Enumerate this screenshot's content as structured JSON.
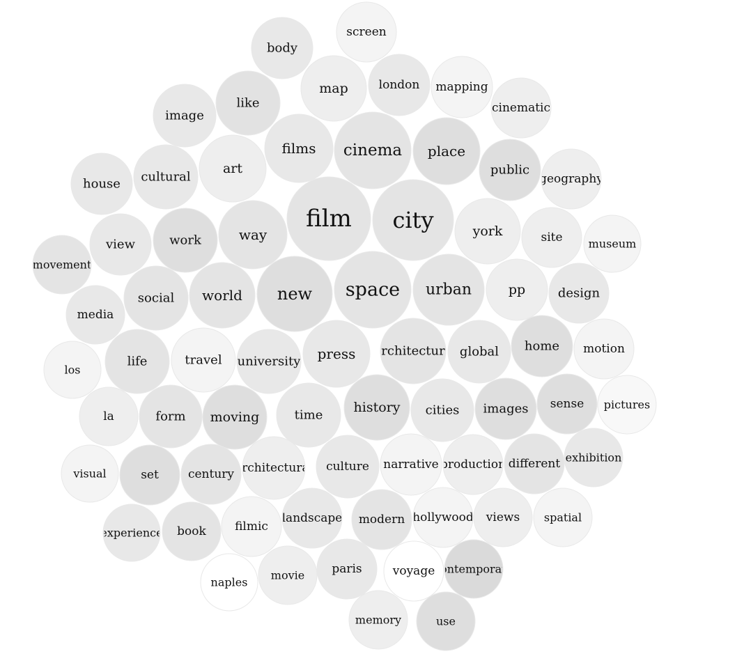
{
  "words": [
    {
      "text": "film",
      "shade": "#e4e4e4"
    },
    {
      "text": "city",
      "shade": "#e4e4e4"
    },
    {
      "text": "space",
      "shade": "#e4e4e4"
    },
    {
      "text": "new",
      "shade": "#dedede"
    },
    {
      "text": "cinema",
      "shade": "#e4e4e4"
    },
    {
      "text": "urban",
      "shade": "#e4e4e4"
    },
    {
      "text": "place",
      "shade": "#dedede"
    },
    {
      "text": "public",
      "shade": "#dedede"
    },
    {
      "text": "screen",
      "shade": "#f4f4f4"
    },
    {
      "text": "body",
      "shade": "#e8e8e8"
    },
    {
      "text": "map",
      "shade": "#eeeeee"
    },
    {
      "text": "london",
      "shade": "#e8e8e8"
    },
    {
      "text": "mapping",
      "shade": "#f4f4f4"
    },
    {
      "text": "cinematic",
      "shade": "#eeeeee"
    },
    {
      "text": "like",
      "shade": "#e2e2e2"
    },
    {
      "text": "image",
      "shade": "#e8e8e8"
    },
    {
      "text": "films",
      "shade": "#e8e8e8"
    },
    {
      "text": "art",
      "shade": "#eeeeee"
    },
    {
      "text": "cultural",
      "shade": "#e8e8e8"
    },
    {
      "text": "house",
      "shade": "#e8e8e8"
    },
    {
      "text": "geography",
      "shade": "#eeeeee"
    },
    {
      "text": "york",
      "shade": "#eeeeee"
    },
    {
      "text": "site",
      "shade": "#eeeeee"
    },
    {
      "text": "museum",
      "shade": "#f4f4f4"
    },
    {
      "text": "way",
      "shade": "#e4e4e4"
    },
    {
      "text": "work",
      "shade": "#dedede"
    },
    {
      "text": "view",
      "shade": "#e8e8e8"
    },
    {
      "text": "movement",
      "shade": "#e4e4e4"
    },
    {
      "text": "pp",
      "shade": "#eeeeee"
    },
    {
      "text": "design",
      "shade": "#e8e8e8"
    },
    {
      "text": "social",
      "shade": "#e4e4e4"
    },
    {
      "text": "world",
      "shade": "#e4e4e4"
    },
    {
      "text": "media",
      "shade": "#e8e8e8"
    },
    {
      "text": "press",
      "shade": "#e8e8e8"
    },
    {
      "text": "architecture",
      "shade": "#e4e4e4"
    },
    {
      "text": "global",
      "shade": "#e8e8e8"
    },
    {
      "text": "home",
      "shade": "#dedede"
    },
    {
      "text": "motion",
      "shade": "#f4f4f4"
    },
    {
      "text": "los",
      "shade": "#f4f4f4"
    },
    {
      "text": "life",
      "shade": "#e4e4e4"
    },
    {
      "text": "travel",
      "shade": "#f4f4f4"
    },
    {
      "text": "university",
      "shade": "#e8e8e8"
    },
    {
      "text": "history",
      "shade": "#dedede"
    },
    {
      "text": "cities",
      "shade": "#e8e8e8"
    },
    {
      "text": "images",
      "shade": "#dedede"
    },
    {
      "text": "sense",
      "shade": "#dedede"
    },
    {
      "text": "pictures",
      "shade": "#f8f8f8"
    },
    {
      "text": "la",
      "shade": "#eeeeee"
    },
    {
      "text": "form",
      "shade": "#e4e4e4"
    },
    {
      "text": "moving",
      "shade": "#dedede"
    },
    {
      "text": "time",
      "shade": "#e8e8e8"
    },
    {
      "text": "visual",
      "shade": "#f4f4f4"
    },
    {
      "text": "set",
      "shade": "#dedede"
    },
    {
      "text": "century",
      "shade": "#e4e4e4"
    },
    {
      "text": "architectural",
      "shade": "#eeeeee"
    },
    {
      "text": "culture",
      "shade": "#e8e8e8"
    },
    {
      "text": "narrative",
      "shade": "#f4f4f4"
    },
    {
      "text": "production",
      "shade": "#eeeeee"
    },
    {
      "text": "different",
      "shade": "#e4e4e4"
    },
    {
      "text": "exhibition",
      "shade": "#e8e8e8"
    },
    {
      "text": "experience",
      "shade": "#e8e8e8"
    },
    {
      "text": "book",
      "shade": "#e4e4e4"
    },
    {
      "text": "filmic",
      "shade": "#f4f4f4"
    },
    {
      "text": "landscape",
      "shade": "#e8e8e8"
    },
    {
      "text": "modern",
      "shade": "#e4e4e4"
    },
    {
      "text": "hollywood",
      "shade": "#f4f4f4"
    },
    {
      "text": "views",
      "shade": "#eeeeee"
    },
    {
      "text": "spatial",
      "shade": "#f4f4f4"
    },
    {
      "text": "naples",
      "shade": "#ffffff"
    },
    {
      "text": "movie",
      "shade": "#eeeeee"
    },
    {
      "text": "paris",
      "shade": "#e8e8e8"
    },
    {
      "text": "voyage",
      "shade": "#ffffff"
    },
    {
      "text": "contemporary",
      "shade": "#dadada"
    },
    {
      "text": "memory",
      "shade": "#eeeeee"
    },
    {
      "text": "use",
      "shade": "#dedede"
    }
  ]
}
